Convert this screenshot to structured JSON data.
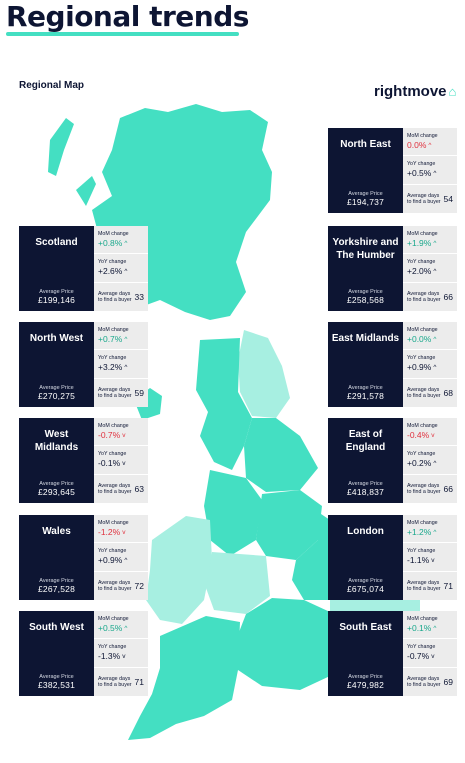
{
  "title": "Regional trends",
  "subtitle": "Regional Map",
  "brand": "rightmove",
  "labels": {
    "mom": "MoM change",
    "yoy": "YoY change",
    "avg_price": "Average Price",
    "avg_days": "Average days to find a buyer"
  },
  "colors": {
    "navy": "#0d1533",
    "mint": "#44dfc2",
    "mint_light": "#a7efe1",
    "positive": "#1aa88c",
    "negative": "#e0313e"
  },
  "chart_data": {
    "type": "table",
    "regions": [
      {
        "name": "North East",
        "avg_price": "£194,737",
        "mom": "0.0%",
        "mom_dir": "up",
        "mom_color": "negative",
        "yoy": "+0.5%",
        "yoy_dir": "up",
        "days": "54"
      },
      {
        "name": "Scotland",
        "avg_price": "£199,146",
        "mom": "+0.8%",
        "mom_dir": "up",
        "mom_color": "positive",
        "yoy": "+2.6%",
        "yoy_dir": "up",
        "days": "33"
      },
      {
        "name": "Yorkshire and The Humber",
        "avg_price": "£258,568",
        "mom": "+1.9%",
        "mom_dir": "up",
        "mom_color": "positive",
        "yoy": "+2.0%",
        "yoy_dir": "up",
        "days": "66"
      },
      {
        "name": "North West",
        "avg_price": "£270,275",
        "mom": "+0.7%",
        "mom_dir": "up",
        "mom_color": "positive",
        "yoy": "+3.2%",
        "yoy_dir": "up",
        "days": "59"
      },
      {
        "name": "East Midlands",
        "avg_price": "£291,578",
        "mom": "+0.0%",
        "mom_dir": "up",
        "mom_color": "positive",
        "yoy": "+0.9%",
        "yoy_dir": "up",
        "days": "68"
      },
      {
        "name": "West Midlands",
        "avg_price": "£293,645",
        "mom": "-0.7%",
        "mom_dir": "down",
        "mom_color": "negative",
        "yoy": "-0.1%",
        "yoy_dir": "down",
        "days": "63"
      },
      {
        "name": "East of England",
        "avg_price": "£418,837",
        "mom": "-0.4%",
        "mom_dir": "down",
        "mom_color": "negative",
        "yoy": "+0.2%",
        "yoy_dir": "up",
        "days": "66"
      },
      {
        "name": "Wales",
        "avg_price": "£267,528",
        "mom": "-1.2%",
        "mom_dir": "down",
        "mom_color": "negative",
        "yoy": "+0.9%",
        "yoy_dir": "up",
        "days": "72"
      },
      {
        "name": "London",
        "avg_price": "£675,074",
        "mom": "+1.2%",
        "mom_dir": "up",
        "mom_color": "positive",
        "yoy": "-1.1%",
        "yoy_dir": "down",
        "days": "71"
      },
      {
        "name": "South West",
        "avg_price": "£382,531",
        "mom": "+0.5%",
        "mom_dir": "up",
        "mom_color": "positive",
        "yoy": "-1.3%",
        "yoy_dir": "down",
        "days": "71"
      },
      {
        "name": "South East",
        "avg_price": "£479,982",
        "mom": "+0.1%",
        "mom_dir": "up",
        "mom_color": "positive",
        "yoy": "-0.7%",
        "yoy_dir": "down",
        "days": "69"
      }
    ]
  }
}
